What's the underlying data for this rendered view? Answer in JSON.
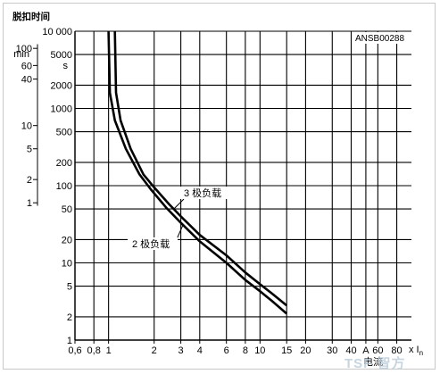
{
  "chart_data": {
    "type": "line",
    "code": "ANSB00288",
    "ylabel": "脱扣时间",
    "xlabel": "电流",
    "xunit_suffix": "x I",
    "xunit_sub": "n",
    "y_unit_s": "s",
    "y_unit_min": "min",
    "x_scale": "log",
    "y_scale": "log",
    "xlim": [
      0.6,
      100
    ],
    "ylim": [
      1,
      10000
    ],
    "grid": true,
    "x_ticks": [
      {
        "v": 0.6,
        "label": "0,6"
      },
      {
        "v": 0.8,
        "label": "0,8"
      },
      {
        "v": 1,
        "label": "1"
      },
      {
        "v": 2,
        "label": "2"
      },
      {
        "v": 3,
        "label": "3"
      },
      {
        "v": 4,
        "label": "4"
      },
      {
        "v": 6,
        "label": "6"
      },
      {
        "v": 8,
        "label": "8"
      },
      {
        "v": 10,
        "label": "10"
      },
      {
        "v": 15,
        "label": "15"
      },
      {
        "v": 20,
        "label": "20"
      },
      {
        "v": 30,
        "label": "30"
      },
      {
        "v": 40,
        "label": "40"
      },
      {
        "v": 50,
        "label": "A"
      },
      {
        "v": 60,
        "label": "60"
      },
      {
        "v": 80,
        "label": "80"
      }
    ],
    "y_ticks_s": [
      {
        "v": 10000,
        "label": "10 000"
      },
      {
        "v": 5000,
        "label": "5000"
      },
      {
        "v": 2000,
        "label": "2000"
      },
      {
        "v": 1000,
        "label": "1000"
      },
      {
        "v": 500,
        "label": "500"
      },
      {
        "v": 200,
        "label": "200"
      },
      {
        "v": 100,
        "label": "100"
      },
      {
        "v": 50,
        "label": "50"
      },
      {
        "v": 20,
        "label": "20"
      },
      {
        "v": 10,
        "label": "10"
      },
      {
        "v": 5,
        "label": "5"
      },
      {
        "v": 2,
        "label": "2"
      },
      {
        "v": 1,
        "label": "1"
      }
    ],
    "y_ticks_min": [
      {
        "v": 6000,
        "label": "100"
      },
      {
        "v": 3600,
        "label": "60"
      },
      {
        "v": 2400,
        "label": "40"
      },
      {
        "v": 600,
        "label": "10"
      },
      {
        "v": 300,
        "label": "5"
      },
      {
        "v": 120,
        "label": "2"
      },
      {
        "v": 60,
        "label": "1"
      }
    ],
    "series": [
      {
        "name": "3 极负载",
        "points": [
          [
            1.1,
            10000
          ],
          [
            1.12,
            1600
          ],
          [
            1.2,
            700
          ],
          [
            1.4,
            300
          ],
          [
            1.7,
            140
          ],
          [
            2,
            95
          ],
          [
            2.5,
            58
          ],
          [
            3,
            40
          ],
          [
            4,
            23
          ],
          [
            6,
            12.5
          ],
          [
            8,
            7.5
          ],
          [
            10,
            5.3
          ],
          [
            12,
            4.0
          ],
          [
            15,
            2.8
          ]
        ]
      },
      {
        "name": "2 极负载",
        "points": [
          [
            1.0,
            10000
          ],
          [
            1.02,
            1600
          ],
          [
            1.1,
            700
          ],
          [
            1.3,
            300
          ],
          [
            1.6,
            140
          ],
          [
            1.9,
            90
          ],
          [
            2.4,
            52
          ],
          [
            3,
            33
          ],
          [
            4,
            19
          ],
          [
            6,
            10
          ],
          [
            8,
            6.0
          ],
          [
            10,
            4.3
          ],
          [
            12,
            3.2
          ],
          [
            15,
            2.2
          ]
        ]
      }
    ],
    "annotations": [
      "3 极负载",
      "2 极负载"
    ]
  },
  "watermark": "TSF 智方"
}
